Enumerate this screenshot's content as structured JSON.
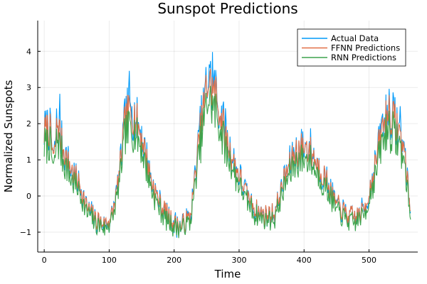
{
  "chart_data": {
    "type": "line",
    "title": "Sunspot Predictions",
    "xlabel": "Time",
    "ylabel": "Normalized Sunspots",
    "xlim": [
      -10,
      575
    ],
    "ylim": [
      -1.55,
      4.85
    ],
    "xticks": [
      0,
      100,
      200,
      300,
      400,
      500
    ],
    "yticks": [
      -1,
      0,
      1,
      2,
      3,
      4
    ],
    "grid": true,
    "legend_position": "top-right",
    "n_points": 565,
    "anchors": {
      "x": [
        0,
        8,
        15,
        20,
        28,
        40,
        55,
        65,
        80,
        95,
        105,
        115,
        125,
        135,
        145,
        155,
        165,
        180,
        195,
        210,
        225,
        240,
        252,
        265,
        280,
        295,
        310,
        325,
        340,
        355,
        370,
        385,
        400,
        410,
        420,
        435,
        450,
        465,
        480,
        495,
        510,
        520,
        530,
        545,
        555,
        564
      ],
      "y": [
        1.8,
        1.9,
        1.0,
        2.1,
        1.4,
        0.8,
        0.3,
        -0.3,
        -0.7,
        -0.8,
        -0.55,
        0.5,
        2.2,
        2.4,
        2.0,
        1.3,
        0.4,
        -0.3,
        -0.7,
        -0.85,
        -0.6,
        1.8,
        3.3,
        2.8,
        1.6,
        0.8,
        0.1,
        -0.4,
        -0.55,
        -0.5,
        0.5,
        1.2,
        1.4,
        1.3,
        0.9,
        0.4,
        -0.25,
        -0.55,
        -0.65,
        -0.3,
        0.9,
        1.9,
        2.4,
        1.9,
        1.2,
        -0.5
      ]
    },
    "series": [
      {
        "name": "Actual Data",
        "color": "#009af9",
        "scale": 1.0,
        "offset": 0.0,
        "noise": 0.42,
        "seed": 11
      },
      {
        "name": "FFNN Predictions",
        "color": "#e26f46",
        "scale": 0.97,
        "offset": 0.02,
        "noise": 0.32,
        "seed": 23
      },
      {
        "name": "RNN Predictions",
        "color": "#3da44d",
        "scale": 0.88,
        "offset": -0.18,
        "noise": 0.34,
        "seed": 37
      }
    ]
  }
}
